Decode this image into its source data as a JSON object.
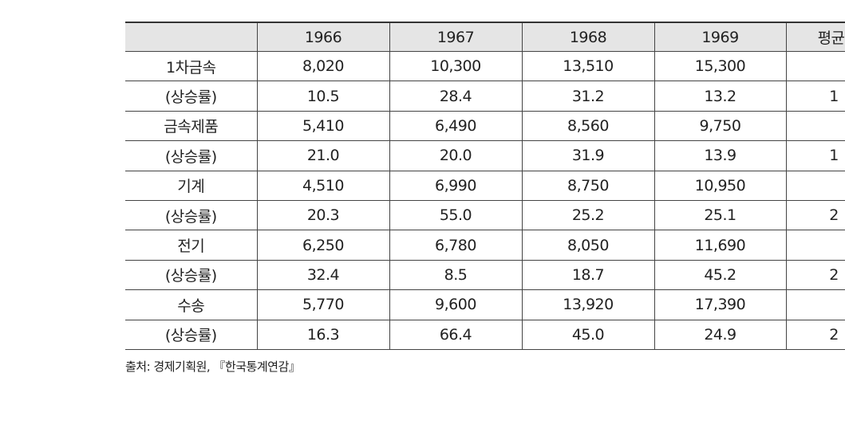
{
  "table": {
    "header": [
      null,
      "1966",
      "1967",
      "1968",
      "1969",
      "평균("
    ],
    "rows": [
      [
        "1차금속",
        "8,020",
        "10,300",
        "13,510",
        "15,300",
        null
      ],
      [
        "(상승률)",
        "10.5",
        "28.4",
        "31.2",
        "13.2",
        "1"
      ],
      [
        "금속제품",
        "5,410",
        "6,490",
        "8,560",
        "9,750",
        null
      ],
      [
        "(상승률)",
        "21.0",
        "20.0",
        "31.9",
        "13.9",
        "1"
      ],
      [
        "기계",
        "4,510",
        "6,990",
        "8,750",
        "10,950",
        null
      ],
      [
        "(상승률)",
        "20.3",
        "55.0",
        "25.2",
        "25.1",
        "2"
      ],
      [
        "전기",
        "6,250",
        "6,780",
        "8,050",
        "11,690",
        null
      ],
      [
        "(상승률)",
        "32.4",
        "8.5",
        "18.7",
        "45.2",
        "2"
      ],
      [
        "수송",
        "5,770",
        "9,600",
        "13,920",
        "17,390",
        null
      ],
      [
        "(상승률)",
        "16.3",
        "66.4",
        "45.0",
        "24.9",
        "2"
      ]
    ]
  },
  "source": "출처: 경제기획원, 『한국통계연감』"
}
